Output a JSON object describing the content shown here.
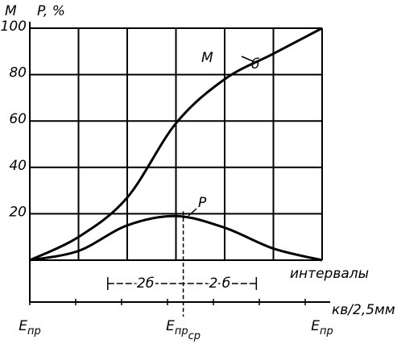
{
  "chart_data": {
    "type": "line",
    "y_label": "M",
    "y_label2": "P, %",
    "x": [
      0,
      1,
      2,
      3,
      4,
      5,
      6
    ],
    "xlim": [
      0,
      6
    ],
    "xgrid": [
      0,
      1,
      2,
      3,
      4,
      5,
      6
    ],
    "ylim": [
      0,
      100
    ],
    "yticks": [
      20,
      40,
      60,
      80,
      100
    ],
    "grid": true,
    "color": "#000000",
    "series": [
      {
        "name": "M",
        "values": [
          0,
          10,
          27,
          59,
          78,
          89,
          100
        ]
      },
      {
        "name": "P",
        "values": [
          0,
          4,
          15,
          19,
          14,
          5,
          0
        ]
      }
    ],
    "sigma_label": "б",
    "interval_label": "интервалы",
    "unit_label": "кв/2,5мм",
    "center": 3.15,
    "spread": [
      1.6,
      4.65
    ],
    "spread_labels": [
      "2б",
      "2 б"
    ],
    "x_labels": [
      {
        "value": 0,
        "base": "E",
        "sub": "пр"
      },
      {
        "value": 3.15,
        "base": "E",
        "sub": "пр",
        "subsub": "ср"
      },
      {
        "value": 6,
        "base": "E",
        "sub": "пр"
      }
    ]
  }
}
